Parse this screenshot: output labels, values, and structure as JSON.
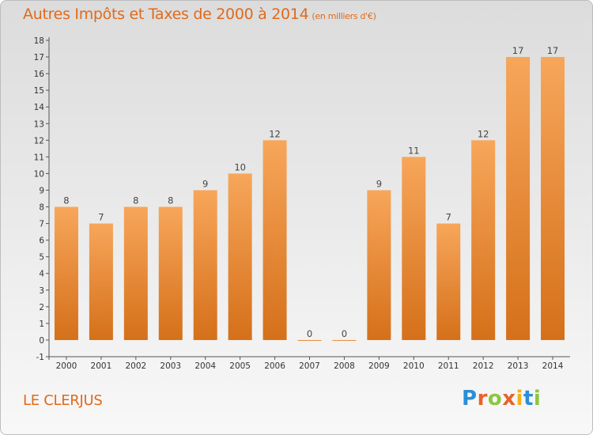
{
  "title": "Autres Impôts et Taxes de 2000 à 2014",
  "unit": "(en milliers d'€)",
  "commune": "LE CLERJUS",
  "logo": {
    "letters": [
      "P",
      "r",
      "o",
      "x",
      "i",
      "t",
      "i"
    ],
    "colors": [
      "#2a8fd8",
      "#e8622a",
      "#8cc63f",
      "#e8622a",
      "#f3b21a",
      "#2a8fd8",
      "#8cc63f"
    ]
  },
  "colors": {
    "bar_light": "#f7a65a",
    "bar_dark": "#d5701a",
    "accent": "#e06a1b"
  },
  "chart_data": {
    "type": "bar",
    "categories": [
      "2000",
      "2001",
      "2002",
      "2003",
      "2004",
      "2005",
      "2006",
      "2007",
      "2008",
      "2009",
      "2010",
      "2011",
      "2012",
      "2013",
      "2014"
    ],
    "values": [
      8,
      7,
      8,
      8,
      9,
      10,
      12,
      0,
      0,
      9,
      11,
      7,
      12,
      17,
      17
    ],
    "ylim": [
      -1,
      18
    ],
    "yticks": [
      -1,
      0,
      1,
      2,
      3,
      4,
      5,
      6,
      7,
      8,
      9,
      10,
      11,
      12,
      13,
      14,
      15,
      16,
      17,
      18
    ],
    "grid": false,
    "data_labels": true
  }
}
